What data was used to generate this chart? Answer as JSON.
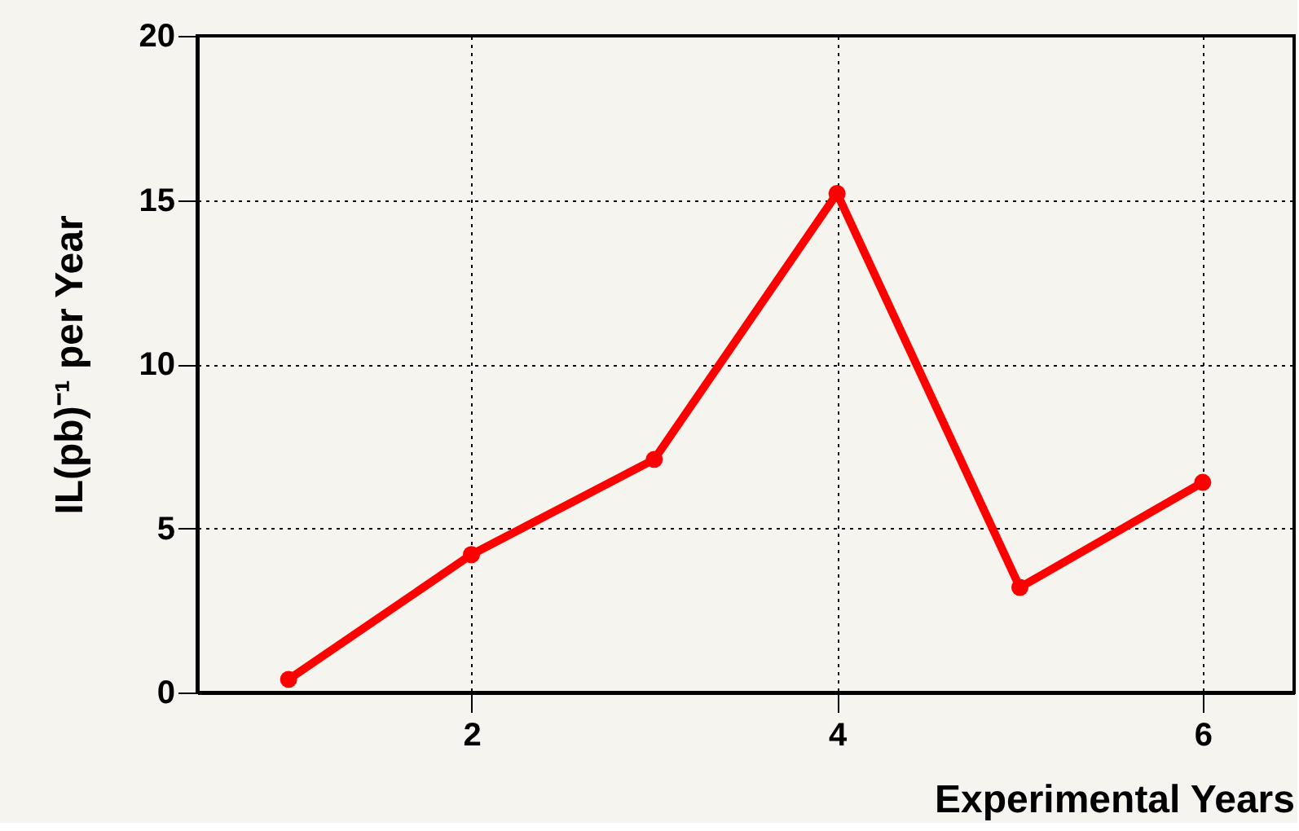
{
  "chart_data": {
    "type": "line",
    "xlabel": "Experimental Years",
    "ylabel": "IL(pb)⁻¹ per Year",
    "x": [
      1,
      2,
      3,
      4,
      5,
      6
    ],
    "series": [
      {
        "color": "#ff0000",
        "values": [
          0.4,
          4.2,
          7.1,
          15.2,
          3.2,
          6.4
        ]
      }
    ],
    "xlim": [
      0.5,
      6.5
    ],
    "xticks": [
      2,
      4,
      6
    ],
    "ylim": [
      0,
      20
    ],
    "yticks": [
      0,
      5,
      10,
      15,
      20
    ],
    "grid": true,
    "marker": "circle",
    "line_style": "solid"
  }
}
